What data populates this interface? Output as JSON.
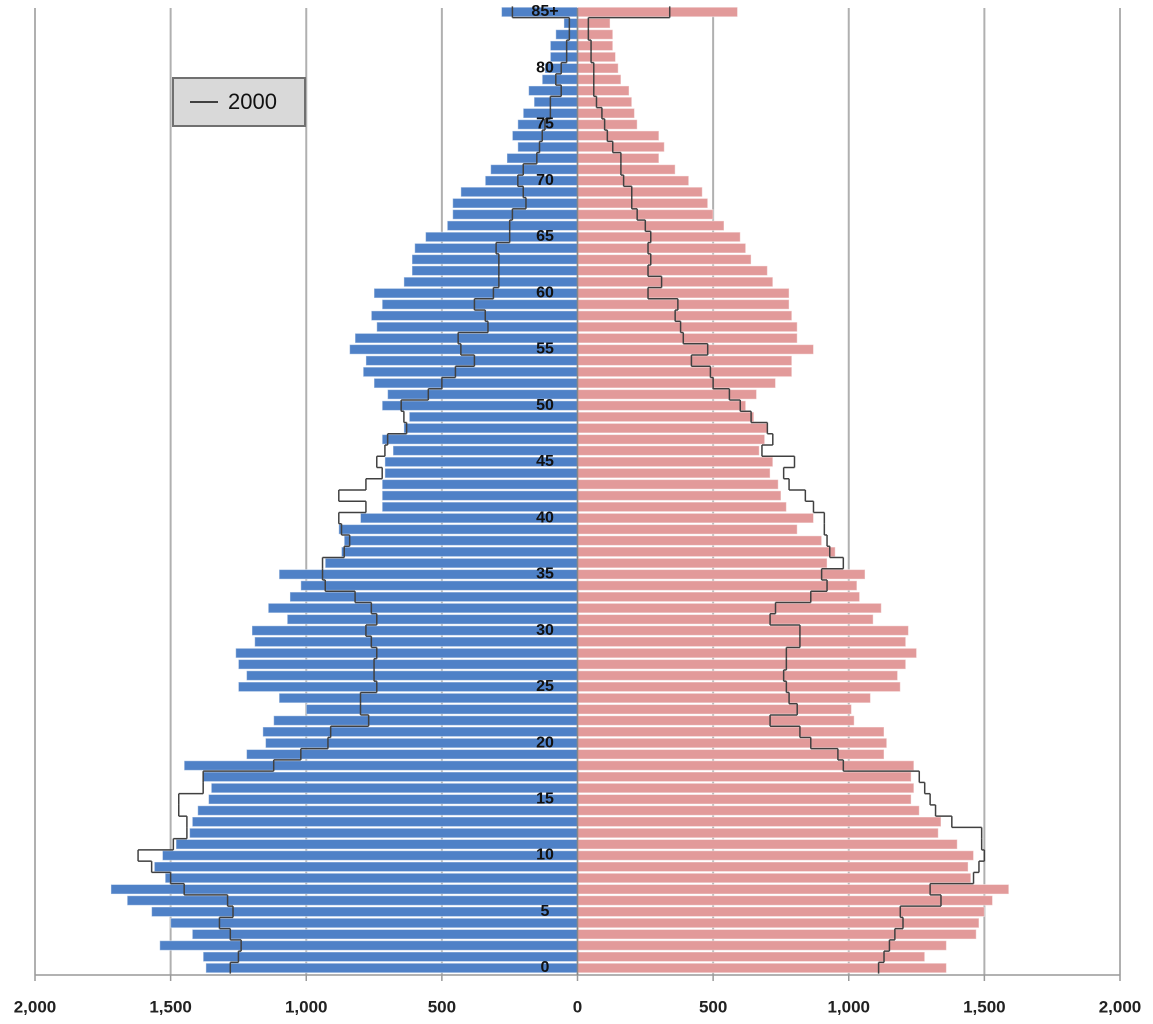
{
  "chart_data": {
    "type": "pyramid",
    "categories": [
      "0",
      null,
      null,
      null,
      null,
      "5",
      null,
      null,
      null,
      null,
      "10",
      null,
      null,
      null,
      null,
      "15",
      null,
      null,
      null,
      null,
      "20",
      null,
      null,
      null,
      null,
      "25",
      null,
      null,
      null,
      null,
      "30",
      null,
      null,
      null,
      null,
      "35",
      null,
      null,
      null,
      null,
      "40",
      null,
      null,
      null,
      null,
      "45",
      null,
      null,
      null,
      null,
      "50",
      null,
      null,
      null,
      null,
      "55",
      null,
      null,
      null,
      null,
      "60",
      null,
      null,
      null,
      null,
      "65",
      null,
      null,
      null,
      null,
      "70",
      null,
      null,
      null,
      null,
      "75",
      null,
      null,
      null,
      null,
      "80",
      null,
      null,
      null,
      null,
      "85+"
    ],
    "series": [
      {
        "type": "bar",
        "side": "left",
        "color": "#4f81c7",
        "values": [
          1370,
          1380,
          1540,
          1420,
          1500,
          1570,
          1660,
          1720,
          1520,
          1560,
          1530,
          1480,
          1430,
          1420,
          1400,
          1360,
          1350,
          1380,
          1450,
          1220,
          1150,
          1160,
          1120,
          1000,
          1100,
          1250,
          1220,
          1250,
          1260,
          1190,
          1200,
          1070,
          1140,
          1060,
          1020,
          1100,
          930,
          870,
          860,
          880,
          800,
          720,
          720,
          720,
          710,
          710,
          680,
          720,
          640,
          620,
          720,
          700,
          750,
          790,
          780,
          840,
          820,
          740,
          760,
          720,
          750,
          640,
          610,
          610,
          600,
          560,
          480,
          460,
          460,
          430,
          340,
          320,
          260,
          220,
          240,
          220,
          200,
          160,
          180,
          130,
          120,
          100,
          100,
          80,
          50,
          280
        ]
      },
      {
        "type": "bar",
        "side": "right",
        "color": "#e29a9a",
        "values": [
          1360,
          1280,
          1360,
          1470,
          1480,
          1500,
          1530,
          1590,
          1450,
          1440,
          1460,
          1400,
          1330,
          1340,
          1260,
          1230,
          1240,
          1230,
          1240,
          1130,
          1140,
          1130,
          1020,
          1010,
          1080,
          1190,
          1180,
          1210,
          1250,
          1210,
          1220,
          1090,
          1120,
          1040,
          1030,
          1060,
          920,
          950,
          900,
          810,
          870,
          770,
          750,
          740,
          710,
          720,
          670,
          690,
          700,
          650,
          620,
          660,
          730,
          790,
          790,
          870,
          810,
          810,
          790,
          780,
          780,
          720,
          700,
          640,
          620,
          600,
          540,
          500,
          480,
          460,
          410,
          360,
          300,
          320,
          300,
          220,
          210,
          200,
          190,
          160,
          150,
          140,
          130,
          130,
          120,
          590
        ]
      },
      {
        "type": "line",
        "side": "left",
        "name": "2000",
        "color": "#404040",
        "values": [
          1280,
          1250,
          1240,
          1280,
          1320,
          1270,
          1290,
          1450,
          1500,
          1570,
          1620,
          1490,
          1440,
          1440,
          1470,
          1470,
          1380,
          1380,
          1120,
          1020,
          920,
          910,
          770,
          800,
          800,
          740,
          750,
          750,
          740,
          760,
          780,
          740,
          760,
          820,
          930,
          940,
          940,
          860,
          840,
          870,
          880,
          780,
          880,
          780,
          720,
          740,
          710,
          700,
          630,
          640,
          650,
          550,
          500,
          450,
          380,
          430,
          440,
          330,
          340,
          380,
          310,
          290,
          290,
          290,
          300,
          250,
          250,
          240,
          190,
          200,
          220,
          200,
          150,
          140,
          130,
          120,
          100,
          100,
          60,
          80,
          60,
          40,
          40,
          30,
          30,
          240
        ]
      },
      {
        "type": "line",
        "side": "right",
        "color": "#404040",
        "values": [
          1110,
          1130,
          1150,
          1170,
          1200,
          1190,
          1340,
          1300,
          1460,
          1480,
          1500,
          1490,
          1490,
          1380,
          1320,
          1300,
          1280,
          1260,
          980,
          960,
          860,
          820,
          710,
          810,
          780,
          770,
          760,
          770,
          770,
          820,
          820,
          710,
          730,
          860,
          920,
          900,
          980,
          930,
          920,
          910,
          910,
          870,
          840,
          780,
          760,
          800,
          680,
          720,
          700,
          640,
          600,
          560,
          500,
          490,
          420,
          480,
          390,
          380,
          360,
          370,
          260,
          310,
          260,
          270,
          260,
          270,
          250,
          220,
          200,
          200,
          170,
          160,
          160,
          130,
          110,
          100,
          90,
          70,
          60,
          60,
          60,
          50,
          50,
          40,
          40,
          340
        ]
      }
    ],
    "xlim": [
      -2000,
      2000
    ],
    "xticks": [
      {
        "value": -2000,
        "label": "2,000"
      },
      {
        "value": -1500,
        "label": "1,500"
      },
      {
        "value": -1000,
        "label": "1,000"
      },
      {
        "value": -500,
        "label": "500"
      },
      0,
      500,
      {
        "value": 1000,
        "label": "1,000"
      },
      {
        "value": 1500,
        "label": "1,500"
      },
      {
        "value": 2000,
        "label": "2,000"
      }
    ],
    "grid": true,
    "legend": "upper left"
  }
}
